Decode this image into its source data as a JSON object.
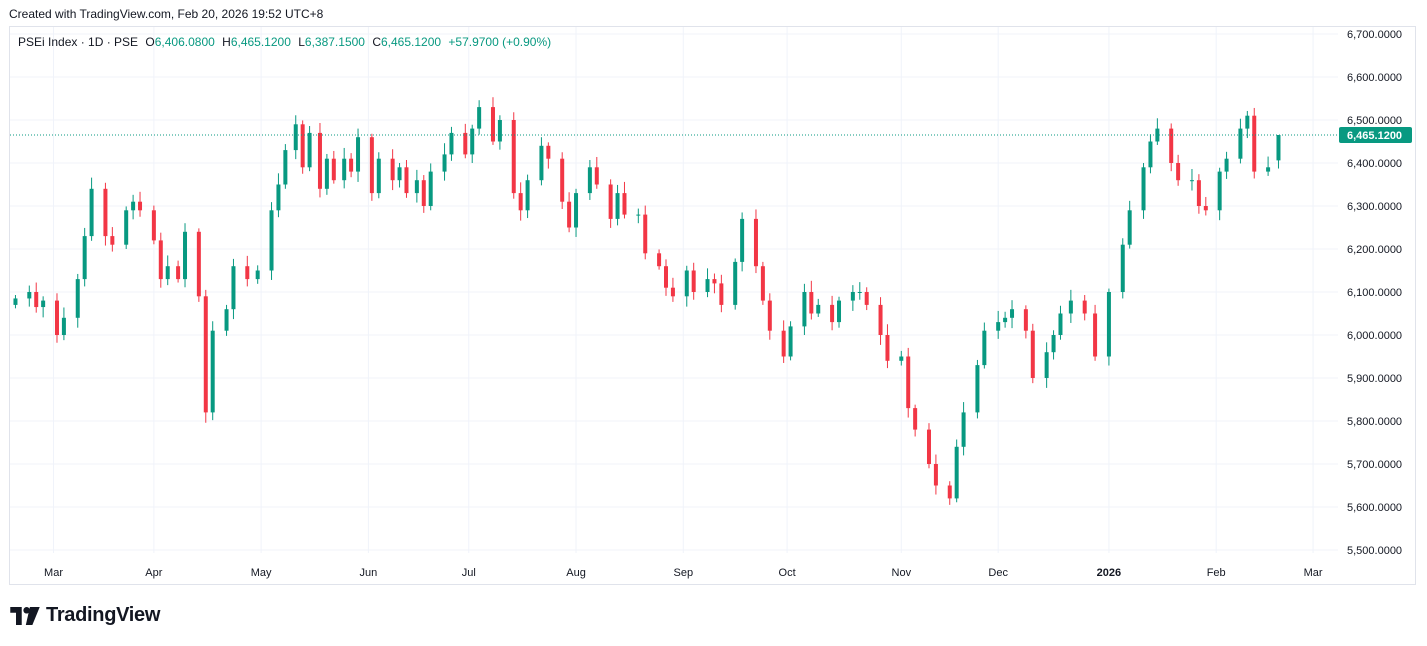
{
  "header": {
    "created_text": "Created with TradingView.com, Feb 20, 2026 19:52 UTC+8"
  },
  "legend": {
    "symbol": "PSEi Index · 1D · PSE",
    "o_label": "O",
    "o_value": "6,406.0800",
    "h_label": "H",
    "h_value": "6,465.1200",
    "l_label": "L",
    "l_value": "6,387.1500",
    "c_label": "C",
    "c_value": "6,465.1200",
    "change": "+57.9700 (+0.90%)"
  },
  "footer": {
    "brand": "TradingView"
  },
  "colors": {
    "up": "#089981",
    "down": "#f23645",
    "grid": "#f0f3fa",
    "text": "#131722"
  },
  "chart_data": {
    "type": "candlestick",
    "title": "PSEi Index · 1D · PSE",
    "last_price": 6465.12,
    "last_price_label": "6,465.1200",
    "ylim": [
      5450,
      6720
    ],
    "y_ticks": [
      5500,
      5600,
      5700,
      5800,
      5900,
      6000,
      6100,
      6200,
      6300,
      6400,
      6500,
      6600,
      6700
    ],
    "y_tick_labels": [
      "5,500.0000",
      "5,600.0000",
      "5,700.0000",
      "5,800.0000",
      "5,900.0000",
      "6,000.0000",
      "6,100.0000",
      "6,200.0000",
      "6,300.0000",
      "6,400.0000",
      "6,500.0000",
      "6,600.0000",
      "6,700.0000"
    ],
    "x_labels": [
      {
        "label": "Mar",
        "date": "2025-03-03"
      },
      {
        "label": "Apr",
        "date": "2025-04-01"
      },
      {
        "label": "May",
        "date": "2025-05-02"
      },
      {
        "label": "Jun",
        "date": "2025-06-02"
      },
      {
        "label": "Jul",
        "date": "2025-07-01"
      },
      {
        "label": "Aug",
        "date": "2025-08-01"
      },
      {
        "label": "Sep",
        "date": "2025-09-01"
      },
      {
        "label": "Oct",
        "date": "2025-10-01"
      },
      {
        "label": "Nov",
        "date": "2025-11-03"
      },
      {
        "label": "Dec",
        "date": "2025-12-01"
      },
      {
        "label": "2026",
        "date": "2026-01-02",
        "bold": true
      },
      {
        "label": "Feb",
        "date": "2026-02-02"
      },
      {
        "label": "Mar",
        "date": "2026-03-02"
      }
    ],
    "x_range": [
      "2025-02-19",
      "2026-03-04"
    ],
    "closes": [
      [
        "2025-02-20",
        6085
      ],
      [
        "2025-02-24",
        6100
      ],
      [
        "2025-02-26",
        6065
      ],
      [
        "2025-02-28",
        6080
      ],
      [
        "2025-03-04",
        6000
      ],
      [
        "2025-03-06",
        6040
      ],
      [
        "2025-03-10",
        6130
      ],
      [
        "2025-03-12",
        6230
      ],
      [
        "2025-03-14",
        6340
      ],
      [
        "2025-03-18",
        6230
      ],
      [
        "2025-03-20",
        6210
      ],
      [
        "2025-03-24",
        6290
      ],
      [
        "2025-03-26",
        6310
      ],
      [
        "2025-03-28",
        6290
      ],
      [
        "2025-04-01",
        6220
      ],
      [
        "2025-04-03",
        6130
      ],
      [
        "2025-04-05",
        6160
      ],
      [
        "2025-04-08",
        6130
      ],
      [
        "2025-04-10",
        6240
      ],
      [
        "2025-04-14",
        6090
      ],
      [
        "2025-04-16",
        5820
      ],
      [
        "2025-04-18",
        6010
      ],
      [
        "2025-04-22",
        6060
      ],
      [
        "2025-04-24",
        6160
      ],
      [
        "2025-04-28",
        6130
      ],
      [
        "2025-05-01",
        6150
      ],
      [
        "2025-05-05",
        6290
      ],
      [
        "2025-05-07",
        6350
      ],
      [
        "2025-05-09",
        6430
      ],
      [
        "2025-05-12",
        6490
      ],
      [
        "2025-05-14",
        6390
      ],
      [
        "2025-05-16",
        6470
      ],
      [
        "2025-05-19",
        6340
      ],
      [
        "2025-05-21",
        6410
      ],
      [
        "2025-05-23",
        6360
      ],
      [
        "2025-05-26",
        6410
      ],
      [
        "2025-05-28",
        6380
      ],
      [
        "2025-05-30",
        6460
      ],
      [
        "2025-06-03",
        6330
      ],
      [
        "2025-06-05",
        6410
      ],
      [
        "2025-06-09",
        6360
      ],
      [
        "2025-06-11",
        6390
      ],
      [
        "2025-06-13",
        6330
      ],
      [
        "2025-06-16",
        6360
      ],
      [
        "2025-06-18",
        6300
      ],
      [
        "2025-06-20",
        6380
      ],
      [
        "2025-06-24",
        6420
      ],
      [
        "2025-06-26",
        6470
      ],
      [
        "2025-06-30",
        6420
      ],
      [
        "2025-07-02",
        6480
      ],
      [
        "2025-07-04",
        6530
      ],
      [
        "2025-07-08",
        6450
      ],
      [
        "2025-07-10",
        6500
      ],
      [
        "2025-07-14",
        6330
      ],
      [
        "2025-07-16",
        6290
      ],
      [
        "2025-07-18",
        6360
      ],
      [
        "2025-07-22",
        6440
      ],
      [
        "2025-07-24",
        6410
      ],
      [
        "2025-07-28",
        6310
      ],
      [
        "2025-07-30",
        6250
      ],
      [
        "2025-08-01",
        6330
      ],
      [
        "2025-08-05",
        6390
      ],
      [
        "2025-08-07",
        6350
      ],
      [
        "2025-08-11",
        6270
      ],
      [
        "2025-08-13",
        6330
      ],
      [
        "2025-08-15",
        6280
      ],
      [
        "2025-08-19",
        6280
      ],
      [
        "2025-08-21",
        6190
      ],
      [
        "2025-08-25",
        6160
      ],
      [
        "2025-08-27",
        6110
      ],
      [
        "2025-08-29",
        6090
      ],
      [
        "2025-09-02",
        6150
      ],
      [
        "2025-09-04",
        6100
      ],
      [
        "2025-09-08",
        6130
      ],
      [
        "2025-09-10",
        6120
      ],
      [
        "2025-09-12",
        6070
      ],
      [
        "2025-09-16",
        6170
      ],
      [
        "2025-09-18",
        6270
      ],
      [
        "2025-09-22",
        6160
      ],
      [
        "2025-09-24",
        6080
      ],
      [
        "2025-09-26",
        6010
      ],
      [
        "2025-09-30",
        5950
      ],
      [
        "2025-10-02",
        6020
      ],
      [
        "2025-10-06",
        6100
      ],
      [
        "2025-10-08",
        6050
      ],
      [
        "2025-10-10",
        6070
      ],
      [
        "2025-10-14",
        6030
      ],
      [
        "2025-10-16",
        6080
      ],
      [
        "2025-10-20",
        6100
      ],
      [
        "2025-10-22",
        6100
      ],
      [
        "2025-10-24",
        6070
      ],
      [
        "2025-10-28",
        6000
      ],
      [
        "2025-10-30",
        5940
      ],
      [
        "2025-11-03",
        5950
      ],
      [
        "2025-11-05",
        5830
      ],
      [
        "2025-11-07",
        5780
      ],
      [
        "2025-11-11",
        5700
      ],
      [
        "2025-11-13",
        5650
      ],
      [
        "2025-11-17",
        5620
      ],
      [
        "2025-11-19",
        5740
      ],
      [
        "2025-11-21",
        5820
      ],
      [
        "2025-11-25",
        5930
      ],
      [
        "2025-11-27",
        6010
      ],
      [
        "2025-12-01",
        6030
      ],
      [
        "2025-12-03",
        6040
      ],
      [
        "2025-12-05",
        6060
      ],
      [
        "2025-12-09",
        6010
      ],
      [
        "2025-12-11",
        5900
      ],
      [
        "2025-12-15",
        5960
      ],
      [
        "2025-12-17",
        6000
      ],
      [
        "2025-12-19",
        6050
      ],
      [
        "2025-12-22",
        6080
      ],
      [
        "2025-12-26",
        6050
      ],
      [
        "2025-12-29",
        5950
      ],
      [
        "2026-01-02",
        6100
      ],
      [
        "2026-01-06",
        6210
      ],
      [
        "2026-01-08",
        6290
      ],
      [
        "2026-01-12",
        6390
      ],
      [
        "2026-01-14",
        6450
      ],
      [
        "2026-01-16",
        6480
      ],
      [
        "2026-01-20",
        6400
      ],
      [
        "2026-01-22",
        6360
      ],
      [
        "2026-01-26",
        6360
      ],
      [
        "2026-01-28",
        6300
      ],
      [
        "2026-01-30",
        6290
      ],
      [
        "2026-02-03",
        6380
      ],
      [
        "2026-02-05",
        6410
      ],
      [
        "2026-02-09",
        6480
      ],
      [
        "2026-02-11",
        6510
      ],
      [
        "2026-02-13",
        6380
      ],
      [
        "2026-02-17",
        6390
      ],
      [
        "2026-02-20",
        6465.12
      ]
    ]
  }
}
